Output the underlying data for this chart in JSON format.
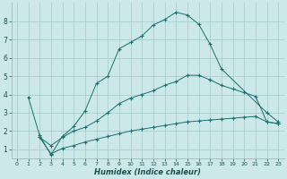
{
  "xlabel": "Humidex (Indice chaleur)",
  "background_color": "#cce8e8",
  "grid_color": "#aacece",
  "line_color": "#1a7070",
  "xlim": [
    -0.5,
    23.5
  ],
  "ylim": [
    0.5,
    9.0
  ],
  "yticks": [
    1,
    2,
    3,
    4,
    5,
    6,
    7,
    8
  ],
  "xticks": [
    0,
    1,
    2,
    3,
    4,
    5,
    6,
    7,
    8,
    9,
    10,
    11,
    12,
    13,
    14,
    15,
    16,
    17,
    18,
    19,
    20,
    21,
    22,
    23
  ],
  "curve1_x": [
    1,
    2,
    3,
    4,
    5,
    6,
    7,
    8,
    9,
    10,
    11,
    12,
    13,
    14,
    15,
    16,
    17,
    18,
    22,
    23
  ],
  "curve1_y": [
    3.85,
    1.75,
    0.7,
    1.7,
    2.25,
    3.1,
    4.6,
    5.0,
    6.5,
    6.85,
    7.2,
    7.8,
    8.1,
    8.5,
    8.35,
    7.85,
    6.75,
    5.4,
    3.0,
    2.5
  ],
  "curve2_x": [
    2,
    3,
    4,
    5,
    6,
    7,
    8,
    9,
    10,
    11,
    12,
    13,
    14,
    15,
    16,
    17,
    18,
    19,
    20,
    21,
    22,
    23
  ],
  "curve2_y": [
    1.65,
    1.2,
    1.65,
    2.0,
    2.2,
    2.55,
    3.0,
    3.5,
    3.8,
    4.0,
    4.2,
    4.5,
    4.7,
    5.05,
    5.05,
    4.8,
    4.5,
    4.3,
    4.1,
    3.9,
    2.5,
    2.4
  ],
  "curve3_x": [
    2,
    3,
    4,
    5,
    6,
    7,
    8,
    9,
    10,
    11,
    12,
    13,
    14,
    15,
    16,
    17,
    18,
    19,
    20,
    21,
    22,
    23
  ],
  "curve3_y": [
    1.65,
    0.75,
    1.05,
    1.2,
    1.4,
    1.55,
    1.7,
    1.85,
    2.0,
    2.1,
    2.2,
    2.3,
    2.4,
    2.5,
    2.55,
    2.6,
    2.65,
    2.7,
    2.75,
    2.8,
    2.5,
    2.4
  ]
}
